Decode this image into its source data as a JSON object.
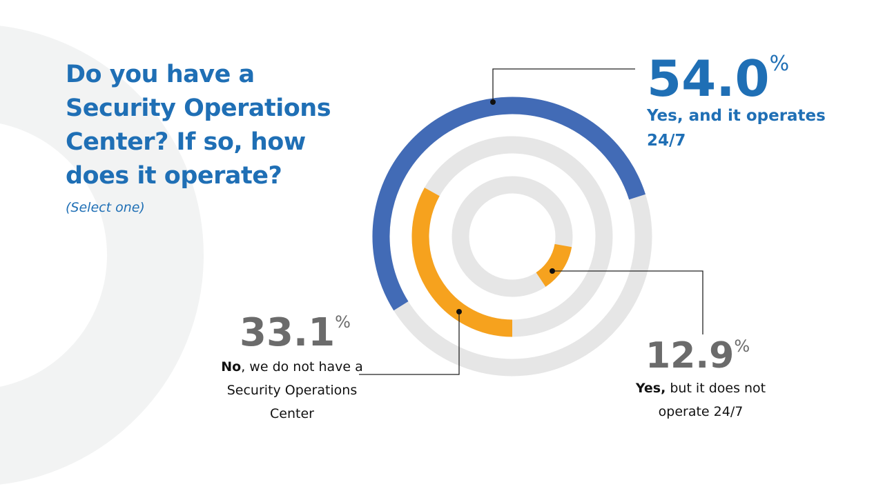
{
  "chart_data": {
    "type": "radial_bar",
    "title": "Do you have a Security Operations Center? If so, how does it operate?",
    "subtitle": "(Select one)",
    "lim": [
      0,
      100
    ],
    "unit": "%",
    "values": [
      54.0,
      33.1,
      12.9
    ],
    "value_labels": [
      "54.0",
      "33.1",
      "12.9"
    ],
    "colors": [
      "#426bb6",
      "#f6a21e",
      "#f6a21e"
    ],
    "track_color": "#e6e6e6",
    "labels": [
      [
        "Yes, and it operates 24/7"
      ],
      [
        "No",
        ", we do not have a Security Operations Center"
      ],
      [
        "Yes,",
        " but it does not operate 24/7"
      ]
    ]
  }
}
